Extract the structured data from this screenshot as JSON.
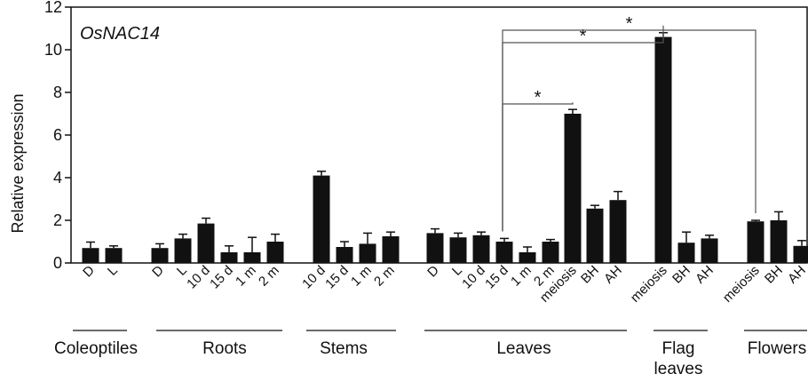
{
  "chart_data": {
    "type": "bar",
    "title": "OsNAC14",
    "ylabel": "Relative expression",
    "ylim": [
      0,
      12
    ],
    "yticks": [
      0,
      2,
      4,
      6,
      8,
      10,
      12
    ],
    "bar_color": "#111111",
    "bars": [
      {
        "label": "D",
        "value": 0.7,
        "error": 0.28,
        "group": "Coleoptiles"
      },
      {
        "label": "L",
        "value": 0.7,
        "error": 0.1,
        "group": "Coleoptiles"
      },
      {
        "label": "D",
        "value": 0.7,
        "error": 0.2,
        "group": "Roots"
      },
      {
        "label": "L",
        "value": 1.15,
        "error": 0.2,
        "group": "Roots"
      },
      {
        "label": "10 d",
        "value": 1.85,
        "error": 0.25,
        "group": "Roots"
      },
      {
        "label": "15 d",
        "value": 0.5,
        "error": 0.3,
        "group": "Roots"
      },
      {
        "label": "1 m",
        "value": 0.5,
        "error": 0.7,
        "group": "Roots"
      },
      {
        "label": "2 m",
        "value": 1.0,
        "error": 0.35,
        "group": "Roots"
      },
      {
        "label": "10 d",
        "value": 4.1,
        "error": 0.2,
        "group": "Stems"
      },
      {
        "label": "15 d",
        "value": 0.75,
        "error": 0.25,
        "group": "Stems"
      },
      {
        "label": "1 m",
        "value": 0.9,
        "error": 0.5,
        "group": "Stems"
      },
      {
        "label": "2 m",
        "value": 1.25,
        "error": 0.2,
        "group": "Stems"
      },
      {
        "label": "D",
        "value": 1.4,
        "error": 0.2,
        "group": "Leaves"
      },
      {
        "label": "L",
        "value": 1.2,
        "error": 0.2,
        "group": "Leaves"
      },
      {
        "label": "10 d",
        "value": 1.3,
        "error": 0.15,
        "group": "Leaves"
      },
      {
        "label": "15 d",
        "value": 1.0,
        "error": 0.15,
        "group": "Leaves"
      },
      {
        "label": "1 m",
        "value": 0.5,
        "error": 0.25,
        "group": "Leaves"
      },
      {
        "label": "2 m",
        "value": 1.0,
        "error": 0.1,
        "group": "Leaves"
      },
      {
        "label": "meiosis",
        "value": 7.0,
        "error": 0.2,
        "group": "Leaves"
      },
      {
        "label": "BH",
        "value": 2.55,
        "error": 0.15,
        "group": "Leaves"
      },
      {
        "label": "AH",
        "value": 2.95,
        "error": 0.4,
        "group": "Leaves"
      },
      {
        "label": "meiosis",
        "value": 10.6,
        "error": 0.2,
        "group": "Flag leaves"
      },
      {
        "label": "BH",
        "value": 0.95,
        "error": 0.5,
        "group": "Flag leaves"
      },
      {
        "label": "AH",
        "value": 1.15,
        "error": 0.15,
        "group": "Flag leaves"
      },
      {
        "label": "meiosis",
        "value": 1.95,
        "error": 0.05,
        "group": "Flowers"
      },
      {
        "label": "BH",
        "value": 2.0,
        "error": 0.4,
        "group": "Flowers"
      },
      {
        "label": "AH",
        "value": 0.8,
        "error": 0.25,
        "group": "Flowers"
      }
    ],
    "groups": [
      {
        "name": "Coleoptiles",
        "lines": [
          "Coleoptiles"
        ]
      },
      {
        "name": "Roots",
        "lines": [
          "Roots"
        ]
      },
      {
        "name": "Stems",
        "lines": [
          "Stems"
        ]
      },
      {
        "name": "Leaves",
        "lines": [
          "Leaves"
        ]
      },
      {
        "name": "Flag leaves",
        "lines": [
          "Flag",
          "leaves"
        ]
      },
      {
        "name": "Flowers",
        "lines": [
          "Flowers"
        ]
      }
    ],
    "significance": [
      {
        "from": 15,
        "to": 18,
        "label": "*"
      },
      {
        "from": 15,
        "to": 21,
        "label": "*"
      },
      {
        "from": 15,
        "to": 24,
        "label": "*"
      }
    ]
  }
}
